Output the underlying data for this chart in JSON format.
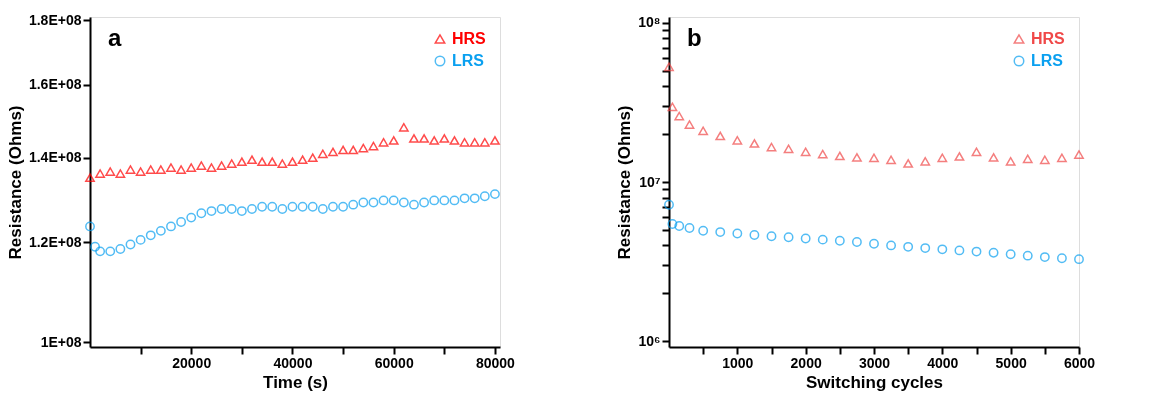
{
  "chart_data": [
    {
      "type": "scatter",
      "annotations": [
        "a"
      ],
      "xlabel": "Time (s)",
      "ylabel": "Resistance (Ohms)",
      "log": "y",
      "grid": false,
      "legend": "top right",
      "xlim": [
        0,
        81000
      ],
      "xticks": [
        {
          "value": 10000,
          "label": null
        },
        20000,
        {
          "value": 30000,
          "label": null
        },
        40000,
        {
          "value": 50000,
          "label": null
        },
        60000,
        {
          "value": 70000,
          "label": null
        },
        80000
      ],
      "ylim": [
        99100000,
        181000000
      ],
      "yticks": [
        {
          "value": 100000000,
          "label": "1E+08"
        },
        {
          "value": 120000000,
          "label": "1.2E+08"
        },
        {
          "value": 140000000,
          "label": "1.4E+08"
        },
        {
          "value": 160000000,
          "label": "1.6E+08"
        },
        {
          "value": 180000000,
          "label": "1.8E+08"
        }
      ],
      "x": [
        0,
        2000,
        4000,
        6000,
        8000,
        10000,
        12000,
        14000,
        16000,
        18000,
        20000,
        22000,
        24000,
        26000,
        28000,
        30000,
        32000,
        34000,
        36000,
        38000,
        40000,
        42000,
        44000,
        46000,
        48000,
        50000,
        52000,
        54000,
        56000,
        58000,
        60000,
        62000,
        64000,
        66000,
        68000,
        70000,
        72000,
        74000,
        76000,
        78000,
        80000
      ],
      "series": [
        {
          "name": "HRS",
          "color": "#ff0000",
          "marker": "triangle",
          "values": [
            135000000,
            136000000,
            136500000,
            136000000,
            137000000,
            136500000,
            137000000,
            137000000,
            137500000,
            137000000,
            137500000,
            138000000,
            137500000,
            138000000,
            138500000,
            139000000,
            139500000,
            139000000,
            139000000,
            138500000,
            139000000,
            139500000,
            140000000,
            141000000,
            141500000,
            142000000,
            142000000,
            142500000,
            143000000,
            144000000,
            144500000,
            148000000,
            145000000,
            145000000,
            144500000,
            145000000,
            144500000,
            144000000,
            144000000,
            144000000,
            144500000
          ]
        },
        {
          "name": "LRS",
          "color": "#0aa0f0",
          "marker": "circle",
          "x": [
            0,
            1000,
            2000,
            4000,
            6000,
            8000,
            10000,
            12000,
            14000,
            16000,
            18000,
            20000,
            22000,
            24000,
            26000,
            28000,
            30000,
            32000,
            34000,
            36000,
            38000,
            40000,
            42000,
            44000,
            46000,
            48000,
            50000,
            52000,
            54000,
            56000,
            58000,
            60000,
            62000,
            64000,
            66000,
            68000,
            70000,
            72000,
            74000,
            76000,
            78000,
            80000
          ],
          "values": [
            123500000,
            119000000,
            118000000,
            118000000,
            118500000,
            119500000,
            120500000,
            121500000,
            122500000,
            123500000,
            124500000,
            125500000,
            126500000,
            127000000,
            127500000,
            127500000,
            127000000,
            127500000,
            128000000,
            128000000,
            127500000,
            128000000,
            128000000,
            128000000,
            127500000,
            128000000,
            128000000,
            128500000,
            129000000,
            129000000,
            129500000,
            129500000,
            129000000,
            128500000,
            129000000,
            129500000,
            129500000,
            129500000,
            130000000,
            130000000,
            130500000,
            131000000
          ]
        }
      ]
    },
    {
      "type": "scatter",
      "annotations": [
        "b"
      ],
      "xlabel": "Switching cycles",
      "ylabel": "Resistance (Ohms)",
      "log": "y",
      "grid": false,
      "legend": "top right",
      "xlim": [
        0,
        6000
      ],
      "xticks": [
        {
          "value": 500,
          "label": null
        },
        1000,
        {
          "value": 1500,
          "label": null
        },
        2000,
        {
          "value": 2500,
          "label": null
        },
        3000,
        {
          "value": 3500,
          "label": null
        },
        4000,
        {
          "value": 4500,
          "label": null
        },
        5000,
        {
          "value": 5500,
          "label": null
        },
        6000
      ],
      "ylim": [
        920000,
        109000000
      ],
      "yticks": [
        {
          "value": 1000000,
          "label": "10⁶"
        },
        {
          "value": 2000000,
          "label": null
        },
        {
          "value": 3000000,
          "label": null
        },
        {
          "value": 4000000,
          "label": null
        },
        {
          "value": 5000000,
          "label": null
        },
        {
          "value": 6000000,
          "label": null
        },
        {
          "value": 7000000,
          "label": null
        },
        {
          "value": 8000000,
          "label": null
        },
        {
          "value": 9000000,
          "label": null
        },
        {
          "value": 10000000,
          "label": "10⁷"
        },
        {
          "value": 20000000,
          "label": null
        },
        {
          "value": 30000000,
          "label": null
        },
        {
          "value": 40000000,
          "label": null
        },
        {
          "value": 50000000,
          "label": null
        },
        {
          "value": 60000000,
          "label": null
        },
        {
          "value": 70000000,
          "label": null
        },
        {
          "value": 80000000,
          "label": null
        },
        {
          "value": 90000000,
          "label": null
        },
        {
          "value": 100000000,
          "label": "10⁸"
        }
      ],
      "x": [
        0,
        50,
        150,
        300,
        500,
        750,
        1000,
        1250,
        1500,
        1750,
        2000,
        2250,
        2500,
        2750,
        3000,
        3250,
        3500,
        3750,
        4000,
        4250,
        4500,
        4750,
        5000,
        5250,
        5500,
        5750,
        6000
      ],
      "series": [
        {
          "name": "HRS",
          "color": "#f04848",
          "marker": "triangle",
          "values": [
            53000000,
            29700000,
            26000000,
            23000000,
            21000000,
            19500000,
            18300000,
            17500000,
            16600000,
            16200000,
            15500000,
            15000000,
            14600000,
            14300000,
            14200000,
            13800000,
            13100000,
            13500000,
            14200000,
            14500000,
            15500000,
            14300000,
            13500000,
            14000000,
            13800000,
            14200000,
            14900000
          ]
        },
        {
          "name": "LRS",
          "color": "#0aa0f0",
          "marker": "circle",
          "values": [
            7200000,
            5450000,
            5300000,
            5150000,
            4950000,
            4850000,
            4750000,
            4650000,
            4570000,
            4500000,
            4420000,
            4350000,
            4280000,
            4200000,
            4100000,
            4000000,
            3920000,
            3850000,
            3780000,
            3720000,
            3660000,
            3600000,
            3520000,
            3450000,
            3380000,
            3320000,
            3280000
          ]
        }
      ]
    }
  ]
}
